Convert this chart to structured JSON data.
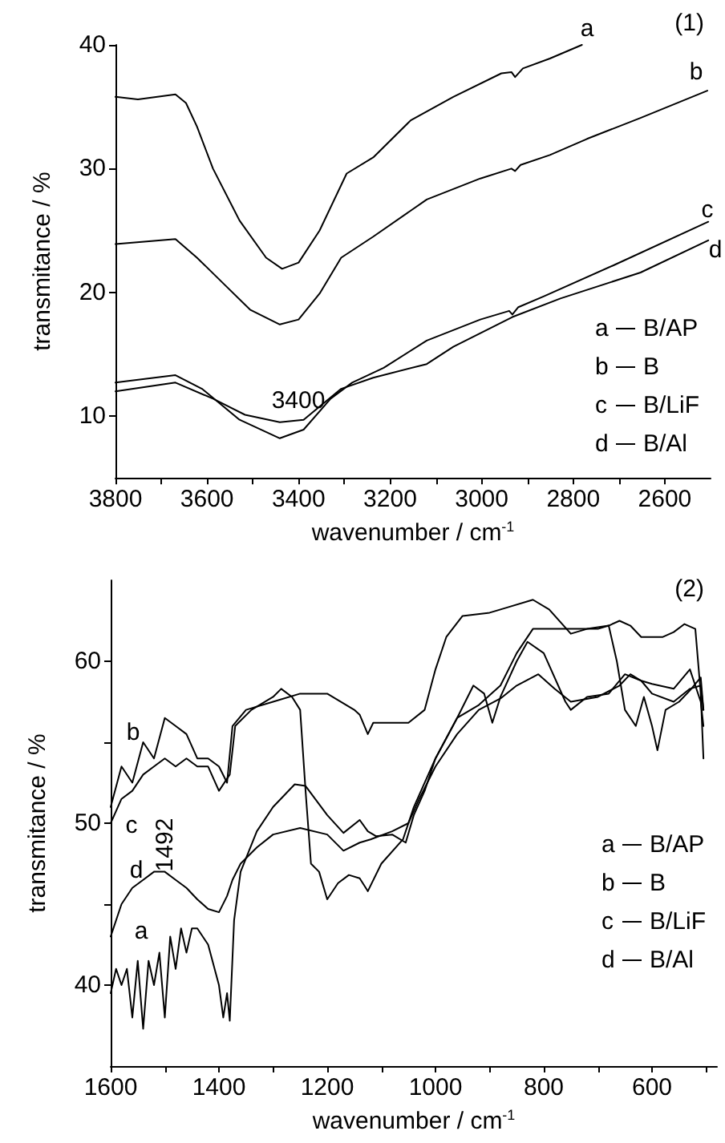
{
  "chart_data": [
    {
      "type": "line",
      "title": "(1)",
      "xlabel": "wavenumber / cm$^{-1}$",
      "ylabel": "transmitance / %",
      "xlim": [
        3800,
        2500
      ],
      "ylim": [
        5,
        40
      ],
      "xticks": [
        3800,
        {
          "value": 3700,
          "label": null
        },
        3600,
        {
          "value": 3500,
          "label": null
        },
        3400,
        {
          "value": 3300,
          "label": null
        },
        3200,
        {
          "value": 3100,
          "label": null
        },
        3000,
        {
          "value": 2900,
          "label": null
        },
        2800,
        {
          "value": 2700,
          "label": null
        },
        2600
      ],
      "yticks": [
        10,
        20,
        30,
        40
      ],
      "grid": false,
      "legend": "bottom right",
      "marker": "none",
      "line_style": "solid",
      "annotations": [
        "a",
        "b",
        "c",
        "d",
        "3400"
      ],
      "series": [
        {
          "name": "B/AP",
          "color": "#000000",
          "x": [
            3800,
            3751,
            3669,
            3646,
            3622,
            3587,
            3529,
            3471,
            3436,
            3400,
            3354,
            3295,
            3237,
            3155,
            3062,
            2957,
            2935,
            2927,
            2910,
            2851,
            2781
          ],
          "values": [
            35.8,
            35.6,
            36,
            35.3,
            33.4,
            30,
            25.8,
            22.8,
            21.9,
            22.4,
            25,
            29.6,
            30.9,
            33.9,
            35.8,
            37.7,
            37.8,
            37.4,
            38.1,
            38.9,
            40
          ]
        },
        {
          "name": "B",
          "color": "#000000",
          "x": [
            3800,
            3669,
            3622,
            3564,
            3506,
            3441,
            3400,
            3354,
            3307,
            3237,
            3120,
            3003,
            2935,
            2927,
            2915,
            2851,
            2770,
            2653,
            2507
          ],
          "values": [
            23.9,
            24.3,
            22.8,
            20.7,
            18.6,
            17.4,
            17.8,
            19.9,
            22.8,
            24.5,
            27.5,
            29.2,
            30,
            29.8,
            30.3,
            31.1,
            32.4,
            34.1,
            36.3
          ]
        },
        {
          "name": "B/LiF",
          "color": "#000000",
          "x": [
            3800,
            3669,
            3611,
            3529,
            3441,
            3389,
            3330,
            3283,
            3214,
            3120,
            3003,
            2940,
            2933,
            2920,
            2863,
            2711,
            2505
          ],
          "values": [
            12.7,
            13.3,
            12.2,
            9.7,
            8.2,
            8.9,
            11.4,
            12.7,
            13.9,
            16.1,
            17.8,
            18.5,
            18.2,
            18.8,
            19.7,
            22.2,
            25.7
          ]
        },
        {
          "name": "B/Al",
          "color": "#000000",
          "x": [
            3800,
            3669,
            3587,
            3517,
            3441,
            3389,
            3307,
            3237,
            3120,
            3062,
            2933,
            2828,
            2653,
            2505
          ],
          "values": [
            12,
            12.7,
            11.4,
            10.1,
            9.5,
            9.7,
            12.2,
            13.1,
            14.2,
            15.6,
            18,
            19.5,
            21.6,
            24.2
          ]
        }
      ]
    },
    {
      "type": "line",
      "title": "(2)",
      "xlabel": "wavenumber / cm$^{-1}$",
      "ylabel": "transmitance / %",
      "xlim": [
        1600,
        480
      ],
      "ylim": [
        35,
        65
      ],
      "xticks": [
        1600,
        {
          "value": 1500,
          "label": null
        },
        1400,
        {
          "value": 1300,
          "label": null
        },
        1200,
        {
          "value": 1100,
          "label": null
        },
        1000,
        {
          "value": 900,
          "label": null
        },
        800,
        {
          "value": 700,
          "label": null
        },
        600,
        {
          "value": 500,
          "label": null
        }
      ],
      "yticks": [
        40,
        {
          "value": 45,
          "label": null
        },
        50,
        {
          "value": 55,
          "label": null
        },
        60
      ],
      "grid": false,
      "legend": "right",
      "marker": "none",
      "line_style": "solid",
      "annotations": [
        "a",
        "b",
        "c",
        "d",
        "1492"
      ],
      "series": [
        {
          "name": "B/AP",
          "color": "#000000",
          "x": [
            1600,
            1590,
            1580,
            1570,
            1560,
            1550,
            1540,
            1530,
            1520,
            1510,
            1500,
            1490,
            1480,
            1470,
            1460,
            1450,
            1440,
            1420,
            1400,
            1392,
            1385,
            1380,
            1372,
            1360,
            1330,
            1300,
            1260,
            1240,
            1200,
            1170,
            1140,
            1125,
            1110,
            1080,
            1055,
            1040,
            1020,
            1000,
            960,
            920,
            880,
            850,
            820,
            750,
            700,
            680,
            665,
            650,
            630,
            615,
            600,
            590,
            575,
            550,
            530,
            510,
            505
          ],
          "values": [
            39.5,
            41,
            40,
            41,
            38,
            41.5,
            37.3,
            41.5,
            40,
            42,
            38,
            43,
            41,
            43.5,
            42,
            43.5,
            43.5,
            42.5,
            40,
            38,
            39.5,
            37.8,
            44,
            47,
            49.5,
            51,
            52.4,
            52.3,
            50.5,
            49.4,
            50.2,
            49.5,
            49.2,
            49.3,
            48.8,
            50.5,
            52,
            54,
            56.5,
            57.3,
            58.5,
            60.5,
            62,
            62,
            62,
            62.2,
            60,
            57,
            56,
            57.8,
            56,
            54.5,
            57,
            57.5,
            58.2,
            59,
            57
          ]
        },
        {
          "name": "B",
          "color": "#000000",
          "x": [
            1600,
            1580,
            1560,
            1540,
            1520,
            1500,
            1480,
            1460,
            1440,
            1420,
            1400,
            1385,
            1375,
            1350,
            1300,
            1250,
            1200,
            1150,
            1140,
            1125,
            1115,
            1100,
            1050,
            1020,
            1000,
            980,
            950,
            900,
            870,
            820,
            790,
            750,
            720,
            680,
            660,
            640,
            620,
            580,
            560,
            540,
            520,
            510,
            505
          ],
          "values": [
            51,
            53.5,
            52.5,
            55,
            54,
            56.5,
            56,
            55.5,
            54,
            54,
            53.5,
            52.5,
            56,
            57,
            57.5,
            58,
            58,
            57,
            56.7,
            55.5,
            56.2,
            56.2,
            56.2,
            57,
            59.5,
            61.5,
            62.8,
            63,
            63.3,
            63.8,
            63.2,
            61.7,
            62,
            62.2,
            62.5,
            62.2,
            61.5,
            61.5,
            61.8,
            62.3,
            62,
            58,
            54
          ]
        },
        {
          "name": "B/LiF",
          "color": "#000000",
          "x": [
            1600,
            1580,
            1560,
            1540,
            1520,
            1500,
            1480,
            1460,
            1440,
            1420,
            1400,
            1380,
            1370,
            1340,
            1300,
            1285,
            1265,
            1250,
            1240,
            1230,
            1215,
            1200,
            1180,
            1160,
            1140,
            1125,
            1100,
            1060,
            1040,
            1000,
            960,
            930,
            910,
            895,
            880,
            850,
            830,
            800,
            760,
            750,
            720,
            680,
            650,
            620,
            600,
            560,
            530,
            510,
            505
          ],
          "values": [
            50,
            51.5,
            52,
            53,
            53.5,
            54,
            53.5,
            54,
            53.5,
            53.5,
            52,
            53,
            56,
            57,
            57.8,
            58.3,
            57.8,
            57,
            52,
            47.5,
            47,
            45.3,
            46.3,
            46.8,
            46.6,
            45.8,
            47.5,
            49,
            51,
            54,
            56.5,
            58.5,
            58,
            56.2,
            57.8,
            60,
            61.2,
            60.5,
            57.5,
            57,
            57.8,
            58,
            59.2,
            58.8,
            58.6,
            58.3,
            59.5,
            57.5,
            56
          ]
        },
        {
          "name": "B/Al",
          "color": "#000000",
          "x": [
            1600,
            1580,
            1560,
            1540,
            1520,
            1500,
            1480,
            1460,
            1440,
            1420,
            1400,
            1385,
            1375,
            1360,
            1330,
            1300,
            1250,
            1200,
            1170,
            1140,
            1120,
            1080,
            1050,
            1030,
            1000,
            960,
            920,
            880,
            850,
            810,
            780,
            750,
            700,
            660,
            640,
            620,
            600,
            560,
            530,
            510,
            505
          ],
          "values": [
            43,
            45,
            46,
            46.5,
            47,
            47,
            46.5,
            46,
            45.3,
            44.7,
            44.5,
            45.5,
            46.5,
            47.5,
            48.5,
            49.3,
            49.7,
            49.3,
            48.3,
            48.8,
            49,
            49.5,
            50,
            51.5,
            53.5,
            55.5,
            57,
            57.7,
            58.5,
            59.2,
            58.3,
            57.5,
            57.8,
            58.5,
            59.2,
            58.8,
            58,
            57.5,
            58.3,
            58.5,
            57
          ]
        }
      ]
    }
  ]
}
